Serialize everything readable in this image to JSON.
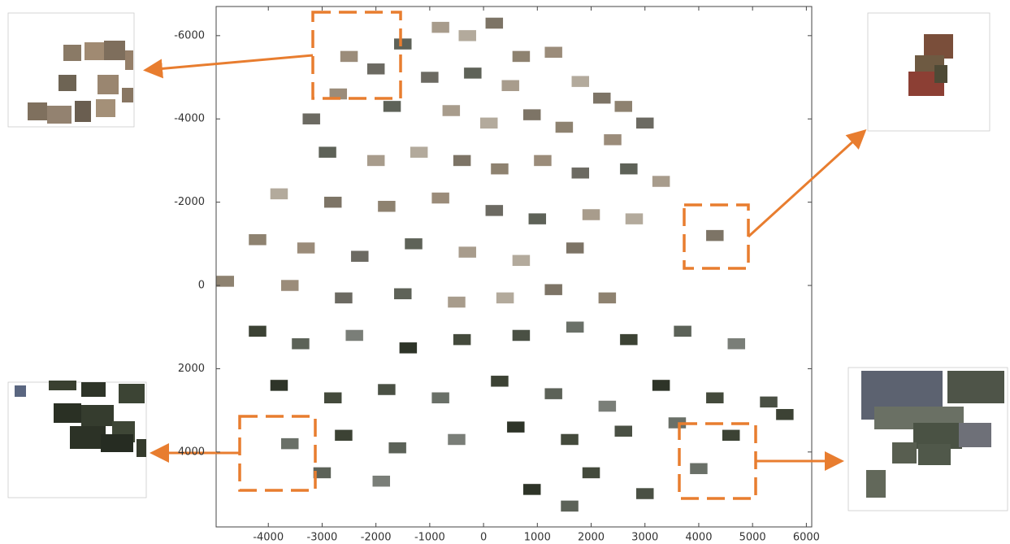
{
  "chart_data": {
    "type": "scatter",
    "x": [
      -2500,
      -2000,
      -1500,
      -800,
      -300,
      200,
      700,
      1300,
      -1000,
      -200,
      500,
      1800,
      2200,
      2600,
      -2700,
      -3200,
      -1700,
      -600,
      100,
      900,
      1500,
      2400,
      3000,
      -2900,
      -2000,
      -1200,
      -400,
      300,
      1100,
      1800,
      2700,
      3300,
      -3800,
      -2800,
      -1800,
      -800,
      200,
      1000,
      2000,
      2800,
      4300,
      -4200,
      -3300,
      -2300,
      -1300,
      -300,
      700,
      1700,
      -4800,
      -3600,
      -2600,
      -1500,
      -500,
      400,
      1300,
      2300,
      -4200,
      -3400,
      -2400,
      -1400,
      -400,
      700,
      1700,
      2700,
      3700,
      4700,
      -3800,
      -2800,
      -1800,
      -800,
      300,
      1300,
      2300,
      3300,
      4300,
      5300,
      -3600,
      -2600,
      -1600,
      -500,
      600,
      1600,
      2600,
      3600,
      4600,
      -3000,
      -1900,
      900,
      2000,
      3000,
      4000,
      5600,
      1600
    ],
    "y": [
      -5500,
      -5200,
      -5800,
      -6200,
      -6000,
      -6300,
      -5500,
      -5600,
      -5000,
      -5100,
      -4800,
      -4900,
      -4500,
      -4300,
      -4600,
      -4000,
      -4300,
      -4200,
      -3900,
      -4100,
      -3800,
      -3500,
      -3900,
      -3200,
      -3000,
      -3200,
      -3000,
      -2800,
      -3000,
      -2700,
      -2800,
      -2500,
      -2200,
      -2000,
      -1900,
      -2100,
      -1800,
      -1600,
      -1700,
      -1600,
      -1200,
      -1100,
      -900,
      -700,
      -1000,
      -800,
      -600,
      -900,
      -100,
      0,
      300,
      200,
      400,
      300,
      100,
      300,
      1100,
      1400,
      1200,
      1500,
      1300,
      1200,
      1000,
      1300,
      1100,
      1400,
      2400,
      2700,
      2500,
      2700,
      2300,
      2600,
      2900,
      2400,
      2700,
      2800,
      3800,
      3600,
      3900,
      3700,
      3400,
      3700,
      3500,
      3300,
      3600,
      4500,
      4700,
      4900,
      4500,
      5000,
      4400,
      3100,
      5300
    ],
    "xlim": [
      -4970,
      6100
    ],
    "ylim": [
      5800,
      -6700
    ],
    "xticks": [
      -4000,
      -3000,
      -2000,
      -1000,
      0,
      1000,
      2000,
      3000,
      4000,
      5000,
      6000
    ],
    "yticks": [
      -6000,
      -4000,
      -2000,
      0,
      2000,
      4000
    ]
  }
}
